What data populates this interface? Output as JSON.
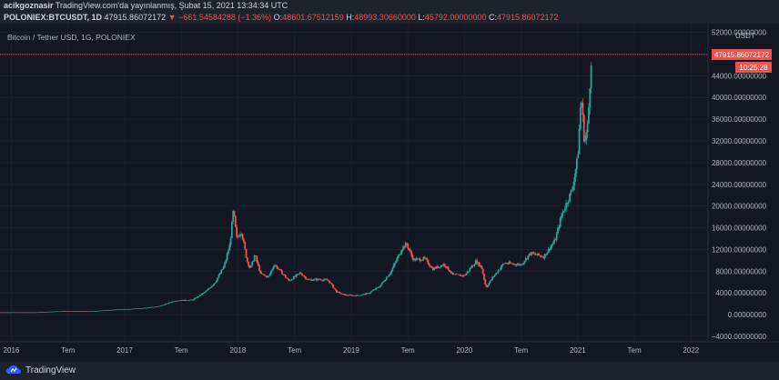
{
  "header": {
    "author": "acikgoznasir",
    "published_text": "TradingView.com'da yayınlanmış, Şubat 15, 2021 13:34:34 UTC",
    "symbol": "POLONIEX:BTCUSDT, 1D",
    "last_price": "47915.86072172",
    "change": "−661.54584288 (−1.36%)",
    "open": "48601.67512159",
    "high": "48993.30660000",
    "low": "45792.00000000",
    "close": "47915.86072172"
  },
  "footer": {
    "brand": "TradingView"
  },
  "colors": {
    "background": "#131722",
    "up": "#26a69a",
    "down": "#ef5350",
    "price_line": "#ef5350",
    "grid": "#1f2433"
  },
  "chart_data": {
    "type": "candlestick",
    "title": "Bitcoin / Tether USD, 1G, POLONIEX",
    "price_axis_unit": "USDT",
    "last_price_label": "47915.86072172",
    "countdown_label": "10:25:28",
    "y_ticks": [
      "52000.00000000",
      "48000.00000000",
      "44000.00000000",
      "40000.00000000",
      "36000.00000000",
      "32000.00000000",
      "28000.00000000",
      "24000.00000000",
      "20000.00000000",
      "16000.00000000",
      "12000.00000000",
      "8000.00000000",
      "4000.00000000",
      "0.00000000",
      "−4000.00000000"
    ],
    "y_tick_values": [
      52000,
      48000,
      44000,
      40000,
      36000,
      32000,
      28000,
      24000,
      20000,
      16000,
      12000,
      8000,
      4000,
      0,
      -4000
    ],
    "x_ticks": [
      "2016",
      "Tem",
      "2017",
      "Tem",
      "2018",
      "Tem",
      "2019",
      "Tem",
      "2020",
      "Tem",
      "2021",
      "Tem",
      "2022"
    ],
    "x_tick_values": [
      2016.0,
      2016.5,
      2017.0,
      2017.5,
      2018.0,
      2018.5,
      2019.0,
      2019.5,
      2020.0,
      2020.5,
      2021.0,
      2021.5,
      2022.0
    ],
    "x_range": [
      2015.9,
      2022.15
    ],
    "y_range": [
      -5000,
      53600
    ],
    "last_price_value": 47915.86,
    "series_points": [
      [
        2015.9,
        430
      ],
      [
        2016.2,
        420
      ],
      [
        2016.45,
        650
      ],
      [
        2016.7,
        620
      ],
      [
        2016.95,
        960
      ],
      [
        2017.1,
        1100
      ],
      [
        2017.3,
        1500
      ],
      [
        2017.45,
        2600
      ],
      [
        2017.6,
        2700
      ],
      [
        2017.72,
        4300
      ],
      [
        2017.8,
        6000
      ],
      [
        2017.88,
        9000
      ],
      [
        2017.93,
        13000
      ],
      [
        2017.96,
        19200
      ],
      [
        2017.99,
        14000
      ],
      [
        2018.03,
        15500
      ],
      [
        2018.08,
        10000
      ],
      [
        2018.11,
        8500
      ],
      [
        2018.15,
        11000
      ],
      [
        2018.2,
        7500
      ],
      [
        2018.27,
        6900
      ],
      [
        2018.32,
        9300
      ],
      [
        2018.4,
        7400
      ],
      [
        2018.45,
        6200
      ],
      [
        2018.55,
        7700
      ],
      [
        2018.62,
        6400
      ],
      [
        2018.72,
        6500
      ],
      [
        2018.8,
        6300
      ],
      [
        2018.87,
        4200
      ],
      [
        2018.95,
        3600
      ],
      [
        2019.05,
        3500
      ],
      [
        2019.15,
        3900
      ],
      [
        2019.25,
        5200
      ],
      [
        2019.35,
        7900
      ],
      [
        2019.45,
        12300
      ],
      [
        2019.49,
        13000
      ],
      [
        2019.55,
        10100
      ],
      [
        2019.65,
        10300
      ],
      [
        2019.72,
        8400
      ],
      [
        2019.82,
        9300
      ],
      [
        2019.9,
        7300
      ],
      [
        2020.0,
        7200
      ],
      [
        2020.1,
        9800
      ],
      [
        2020.15,
        8800
      ],
      [
        2020.19,
        5000
      ],
      [
        2020.25,
        6900
      ],
      [
        2020.35,
        9500
      ],
      [
        2020.5,
        9200
      ],
      [
        2020.58,
        11300
      ],
      [
        2020.7,
        10700
      ],
      [
        2020.8,
        13700
      ],
      [
        2020.86,
        18500
      ],
      [
        2020.95,
        23000
      ],
      [
        2021.0,
        29000
      ],
      [
        2021.03,
        40500
      ],
      [
        2021.06,
        31500
      ],
      [
        2021.09,
        35000
      ],
      [
        2021.12,
        47900
      ]
    ]
  }
}
